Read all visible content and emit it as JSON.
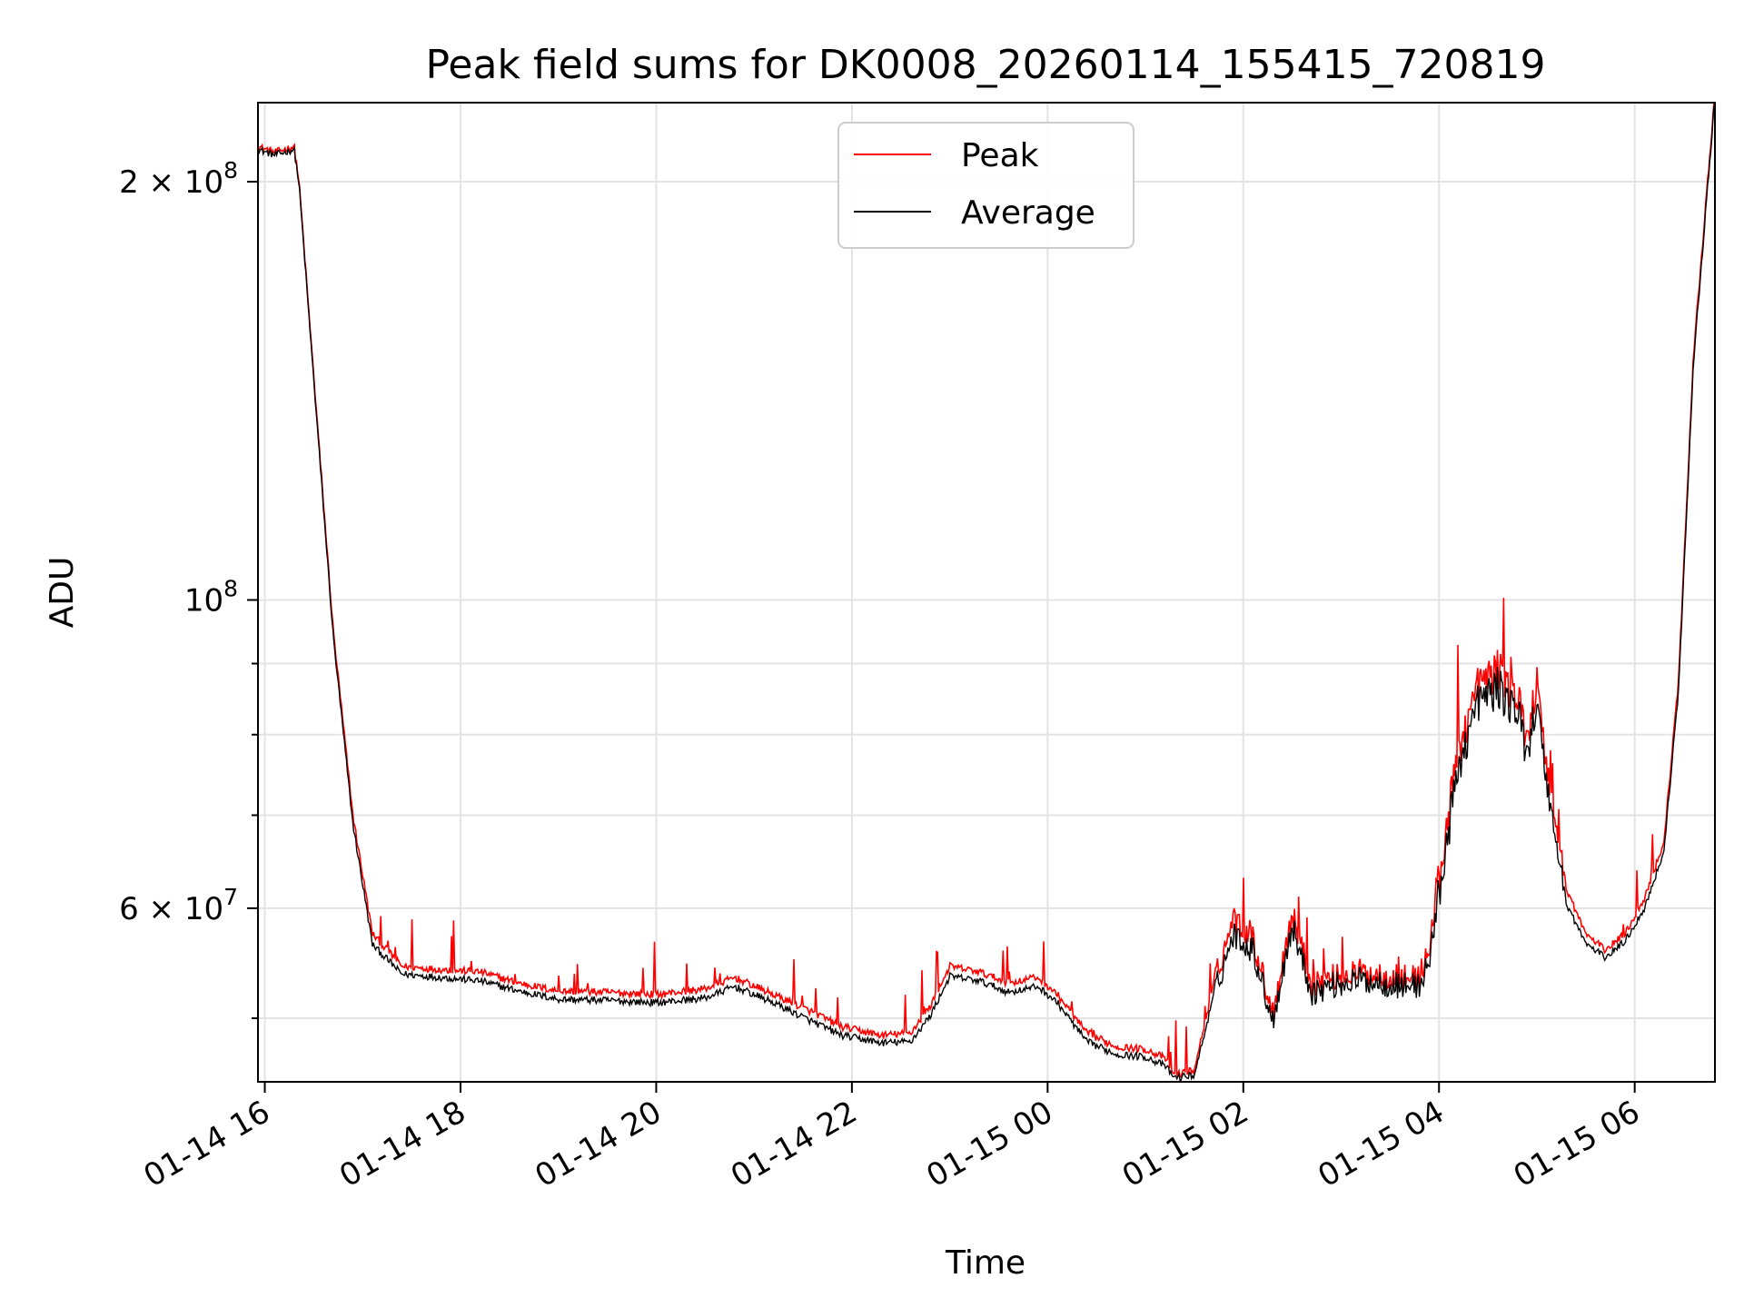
{
  "chart_data": {
    "type": "line",
    "title": "Peak field sums for DK0008_20260114_155415_720819",
    "xlabel": "Time",
    "ylabel": "ADU",
    "yscale": "log",
    "xlim_hours": [
      15.93,
      30.82
    ],
    "ylim": [
      45000000,
      228000000
    ],
    "grid": true,
    "legend_placement": "upper-center",
    "x_ticks": [
      {
        "hours": 16,
        "label": "01-14 16"
      },
      {
        "hours": 18,
        "label": "01-14 18"
      },
      {
        "hours": 20,
        "label": "01-14 20"
      },
      {
        "hours": 22,
        "label": "01-14 22"
      },
      {
        "hours": 24,
        "label": "01-15 00"
      },
      {
        "hours": 26,
        "label": "01-15 02"
      },
      {
        "hours": 28,
        "label": "01-15 04"
      },
      {
        "hours": 30,
        "label": "01-15 06"
      }
    ],
    "y_major_ticks": [
      {
        "value": 60000000,
        "mantissa": "6",
        "exponent": "7"
      },
      {
        "value": 100000000,
        "mantissa": "",
        "exponent": "8"
      },
      {
        "value": 200000000,
        "mantissa": "2",
        "exponent": "8"
      }
    ],
    "y_minor_ticks": [
      50000000,
      70000000,
      80000000,
      90000000
    ],
    "base_label": "10",
    "times_label": "×",
    "series": [
      {
        "name": "Peak",
        "color": "#ff0000",
        "x_hours": [
          15.93,
          16.1,
          16.3,
          16.35,
          16.5,
          16.7,
          16.9,
          17.1,
          17.4,
          17.8,
          18.2,
          18.6,
          19.0,
          19.5,
          20.0,
          20.5,
          20.8,
          21.2,
          21.6,
          21.9,
          22.3,
          22.6,
          22.8,
          23.0,
          23.3,
          23.6,
          23.9,
          24.1,
          24.4,
          24.7,
          25.0,
          25.2,
          25.3,
          25.5,
          25.7,
          25.9,
          26.1,
          26.3,
          26.5,
          26.7,
          26.9,
          27.2,
          27.6,
          27.8,
          27.9,
          28.0,
          28.2,
          28.4,
          28.6,
          28.8,
          28.9,
          29.0,
          29.1,
          29.3,
          29.5,
          29.7,
          29.9,
          30.1,
          30.3,
          30.45,
          30.6,
          30.82
        ],
        "y": [
          212000000,
          210000000,
          212000000,
          200000000,
          145000000,
          95000000,
          70000000,
          57500000,
          54500000,
          54200000,
          54000000,
          53000000,
          52300000,
          52200000,
          52000000,
          52500000,
          53500000,
          52000000,
          50500000,
          49300000,
          48600000,
          48800000,
          51000000,
          54500000,
          54000000,
          53000000,
          53500000,
          52000000,
          48800000,
          47700000,
          47500000,
          46800000,
          45500000,
          45900000,
          53000000,
          59000000,
          57000000,
          50500000,
          59500000,
          53000000,
          53500000,
          54000000,
          53500000,
          53500000,
          56000000,
          63000000,
          78000000,
          87000000,
          89000000,
          85000000,
          80000000,
          87000000,
          76000000,
          62000000,
          57500000,
          56000000,
          57500000,
          61000000,
          67000000,
          88000000,
          150000000,
          232000000
        ]
      },
      {
        "name": "Average",
        "color": "#000000",
        "x_hours": [
          15.93,
          16.1,
          16.3,
          16.35,
          16.5,
          16.7,
          16.9,
          17.1,
          17.4,
          17.8,
          18.2,
          18.6,
          19.0,
          19.5,
          20.0,
          20.5,
          20.8,
          21.2,
          21.6,
          21.9,
          22.3,
          22.6,
          22.8,
          23.0,
          23.3,
          23.6,
          23.9,
          24.1,
          24.4,
          24.7,
          25.0,
          25.2,
          25.3,
          25.5,
          25.7,
          25.9,
          26.1,
          26.3,
          26.5,
          26.7,
          26.9,
          27.2,
          27.6,
          27.8,
          27.9,
          28.0,
          28.2,
          28.4,
          28.6,
          28.8,
          28.9,
          29.0,
          29.1,
          29.3,
          29.5,
          29.7,
          29.9,
          30.1,
          30.3,
          30.45,
          30.6,
          30.82
        ],
        "y": [
          211000000,
          209000000,
          211000000,
          199000000,
          144000000,
          94000000,
          69000000,
          56500000,
          53800000,
          53500000,
          53200000,
          52300000,
          51600000,
          51500000,
          51300000,
          51700000,
          52700000,
          51300000,
          49700000,
          48600000,
          48000000,
          48100000,
          50200000,
          53600000,
          53200000,
          52200000,
          52700000,
          51300000,
          48100000,
          47100000,
          46900000,
          46200000,
          45300000,
          45500000,
          52000000,
          57500000,
          56000000,
          49800000,
          58300000,
          52200000,
          52800000,
          53300000,
          52800000,
          52800000,
          55000000,
          61500000,
          76000000,
          84500000,
          86500000,
          83000000,
          78000000,
          84500000,
          74000000,
          60500000,
          56600000,
          55300000,
          56800000,
          60000000,
          66000000,
          86500000,
          148000000,
          230000000
        ]
      }
    ]
  }
}
